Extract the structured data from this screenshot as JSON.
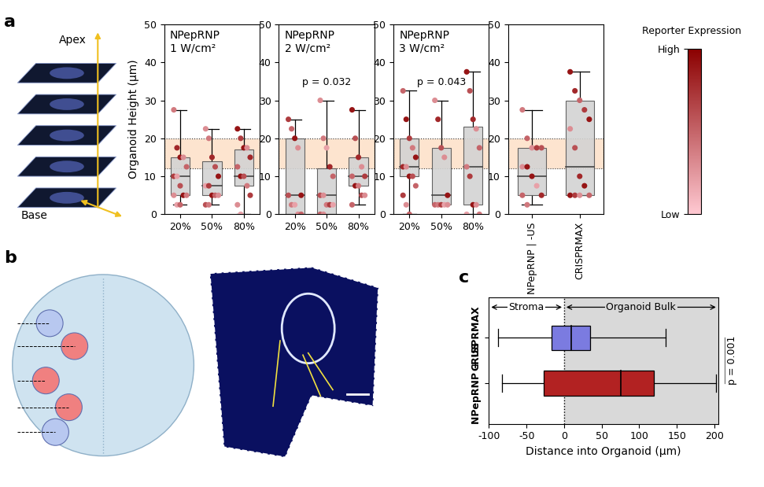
{
  "panel_labels": [
    "a",
    "b",
    "c"
  ],
  "stack_labels": {
    "top": "Apex",
    "bottom": "Base"
  },
  "colorbar": {
    "label": "Reporter Expression",
    "colors": [
      "#ffc9d2",
      "#8b0000"
    ],
    "range": [
      0,
      1
    ],
    "ticks": [
      {
        "value": 0,
        "label": "Low"
      },
      {
        "value": 1,
        "label": "High"
      }
    ]
  },
  "chart_data": [
    {
      "type": "box",
      "title": "NPepRNP\n1 W/cm²",
      "ylabel": "Organoid Height (µm)",
      "categories": [
        "20%",
        "50%",
        "80%"
      ],
      "ylim": [
        0,
        50
      ],
      "yticks": [
        0,
        10,
        20,
        30,
        40,
        50
      ],
      "band": [
        12,
        20
      ],
      "color": "#d3d3d3",
      "box": {
        "whisker_low": [
          2.5,
          2.5,
          0
        ],
        "q1": [
          5,
          5,
          7.5
        ],
        "median": [
          10,
          7.5,
          10
        ],
        "q3": [
          15,
          14,
          17
        ],
        "whisker_high": [
          27.5,
          22.5,
          22.5
        ]
      },
      "points": [
        [
          27.5,
          17.5,
          15,
          15,
          12.5,
          10,
          10,
          7.5,
          5,
          5,
          5,
          2.5,
          2.5
        ],
        [
          22.5,
          20,
          15,
          12.5,
          10,
          7.5,
          7.5,
          5,
          5,
          5,
          2.5,
          2.5
        ],
        [
          22.5,
          20,
          17.5,
          17.5,
          15,
          12.5,
          10,
          10,
          7.5,
          5,
          2.5,
          0
        ]
      ],
      "expression": [
        [
          0.4,
          0.8,
          0.9,
          0.3,
          0.5,
          0.7,
          0.2,
          0.6,
          0.9,
          0.4,
          0.3,
          0.2,
          0.5
        ],
        [
          0.3,
          0.4,
          0.8,
          0.6,
          0.9,
          0.2,
          0.7,
          0.9,
          0.5,
          0.3,
          0.6,
          0.4
        ],
        [
          0.9,
          0.7,
          0.9,
          0.3,
          0.8,
          0.5,
          0.9,
          0.6,
          0.4,
          0.7,
          0.3,
          0.2
        ]
      ]
    },
    {
      "type": "box",
      "title": "NPepRNP\n2 W/cm²",
      "annotation": "p = 0.032",
      "categories": [
        "20%",
        "50%",
        "80%"
      ],
      "ylim": [
        0,
        50
      ],
      "yticks": [
        0,
        10,
        20,
        30,
        40,
        50
      ],
      "band": [
        12,
        20
      ],
      "color": "#d3d3d3",
      "box": {
        "whisker_low": [
          0,
          0,
          2.5
        ],
        "q1": [
          0,
          0,
          7.5
        ],
        "median": [
          5,
          5,
          10
        ],
        "q3": [
          20,
          12,
          15
        ],
        "whisker_high": [
          25,
          30,
          27.5
        ]
      },
      "points": [
        [
          25,
          22.5,
          20,
          17.5,
          5,
          5,
          2.5,
          2.5,
          0,
          0
        ],
        [
          30,
          20,
          17.5,
          12.5,
          10,
          5,
          5,
          2.5,
          2.5,
          2.5,
          0,
          0
        ],
        [
          27.5,
          20,
          15,
          12.5,
          10,
          10,
          7.5,
          7.5,
          5,
          5,
          2.5
        ]
      ],
      "expression": [
        [
          0.7,
          0.5,
          0.9,
          0.3,
          0.9,
          0.6,
          0.4,
          0.2,
          0.3,
          0.5
        ],
        [
          0.3,
          0.4,
          0.2,
          0.8,
          0.5,
          0.6,
          0.3,
          0.4,
          0.7,
          0.2,
          0.5,
          0.3
        ],
        [
          0.9,
          0.6,
          0.8,
          0.3,
          0.7,
          0.5,
          0.9,
          0.4,
          0.6,
          0.3,
          0.5
        ]
      ]
    },
    {
      "type": "box",
      "title": "NPepRNP\n3 W/cm²",
      "annotation": "p = 0.043",
      "categories": [
        "20%",
        "50%",
        "80%"
      ],
      "ylim": [
        0,
        50
      ],
      "yticks": [
        0,
        10,
        20,
        30,
        40,
        50
      ],
      "band": [
        12,
        20
      ],
      "color": "#d3d3d3",
      "box": {
        "whisker_low": [
          0,
          2.5,
          0
        ],
        "q1": [
          10,
          2.5,
          2.5
        ],
        "median": [
          12.5,
          5,
          12.5
        ],
        "q3": [
          20,
          17.5,
          23
        ],
        "whisker_high": [
          32.5,
          30,
          37.5
        ]
      },
      "points": [
        [
          32.5,
          25,
          20,
          17.5,
          15,
          12.5,
          12.5,
          10,
          10,
          7.5,
          5,
          2.5,
          0
        ],
        [
          30,
          25,
          17.5,
          15,
          5,
          2.5,
          2.5,
          2.5,
          2.5,
          2.5
        ],
        [
          37.5,
          32.5,
          25,
          22.5,
          17.5,
          12.5,
          10,
          2.5,
          2.5,
          0,
          0
        ]
      ],
      "expression": [
        [
          0.5,
          0.9,
          0.7,
          0.4,
          0.9,
          0.8,
          0.3,
          0.9,
          0.6,
          0.5,
          0.7,
          0.3,
          0.5
        ],
        [
          0.3,
          0.8,
          0.6,
          0.3,
          0.9,
          0.5,
          0.4,
          0.7,
          0.2,
          0.3
        ],
        [
          0.9,
          0.6,
          0.8,
          0.3,
          0.5,
          0.4,
          0.7,
          0.9,
          0.3,
          0.4,
          0.2
        ]
      ]
    },
    {
      "type": "box",
      "categories": [
        "NPepRNP | -US",
        "CRISPRMAX"
      ],
      "ylim": [
        0,
        50
      ],
      "yticks": [
        0,
        10,
        20,
        30,
        40,
        50
      ],
      "band": [
        12,
        20
      ],
      "color": "#d3d3d3",
      "box": {
        "whisker_low": [
          2.5,
          5
        ],
        "q1": [
          5,
          5
        ],
        "median": [
          10,
          12.5
        ],
        "q3": [
          17.5,
          30
        ],
        "whisker_high": [
          27.5,
          37.5
        ]
      },
      "points": [
        [
          27.5,
          20,
          17.5,
          17.5,
          17.5,
          12.5,
          12.5,
          10,
          7.5,
          5,
          5,
          2.5
        ],
        [
          37.5,
          32.5,
          30,
          27.5,
          25,
          22.5,
          17.5,
          10,
          7.5,
          5,
          5,
          5,
          5
        ]
      ],
      "expression": [
        [
          0.4,
          0.5,
          0.3,
          0.7,
          0.6,
          0.3,
          0.9,
          0.9,
          0.2,
          0.8,
          0.5,
          0.4
        ],
        [
          0.9,
          0.8,
          0.5,
          0.7,
          0.9,
          0.3,
          0.6,
          0.8,
          0.9,
          0.5,
          0.9,
          0.7,
          0.3
        ]
      ]
    },
    {
      "type": "box",
      "orientation": "horizontal",
      "xlabel": "Distance into Organoid (µm)",
      "categories": [
        "NPepRNP + US",
        "CRISPRMAX"
      ],
      "colors": [
        "#b22222",
        "#7b7be0"
      ],
      "xlim": [
        -100,
        205
      ],
      "xticks": [
        -100,
        -50,
        0,
        50,
        100,
        150,
        200
      ],
      "regions": [
        {
          "label": "Stroma",
          "range": [
            -100,
            0
          ]
        },
        {
          "label": "Organoid Bulk",
          "range": [
            0,
            205
          ]
        }
      ],
      "annotation": "p = 0.001",
      "box": {
        "whisker_low": [
          -83,
          -88
        ],
        "q1": [
          -27,
          -17
        ],
        "median": [
          75,
          10
        ],
        "q3": [
          119,
          35
        ],
        "whisker_high": [
          202,
          135
        ]
      }
    }
  ]
}
